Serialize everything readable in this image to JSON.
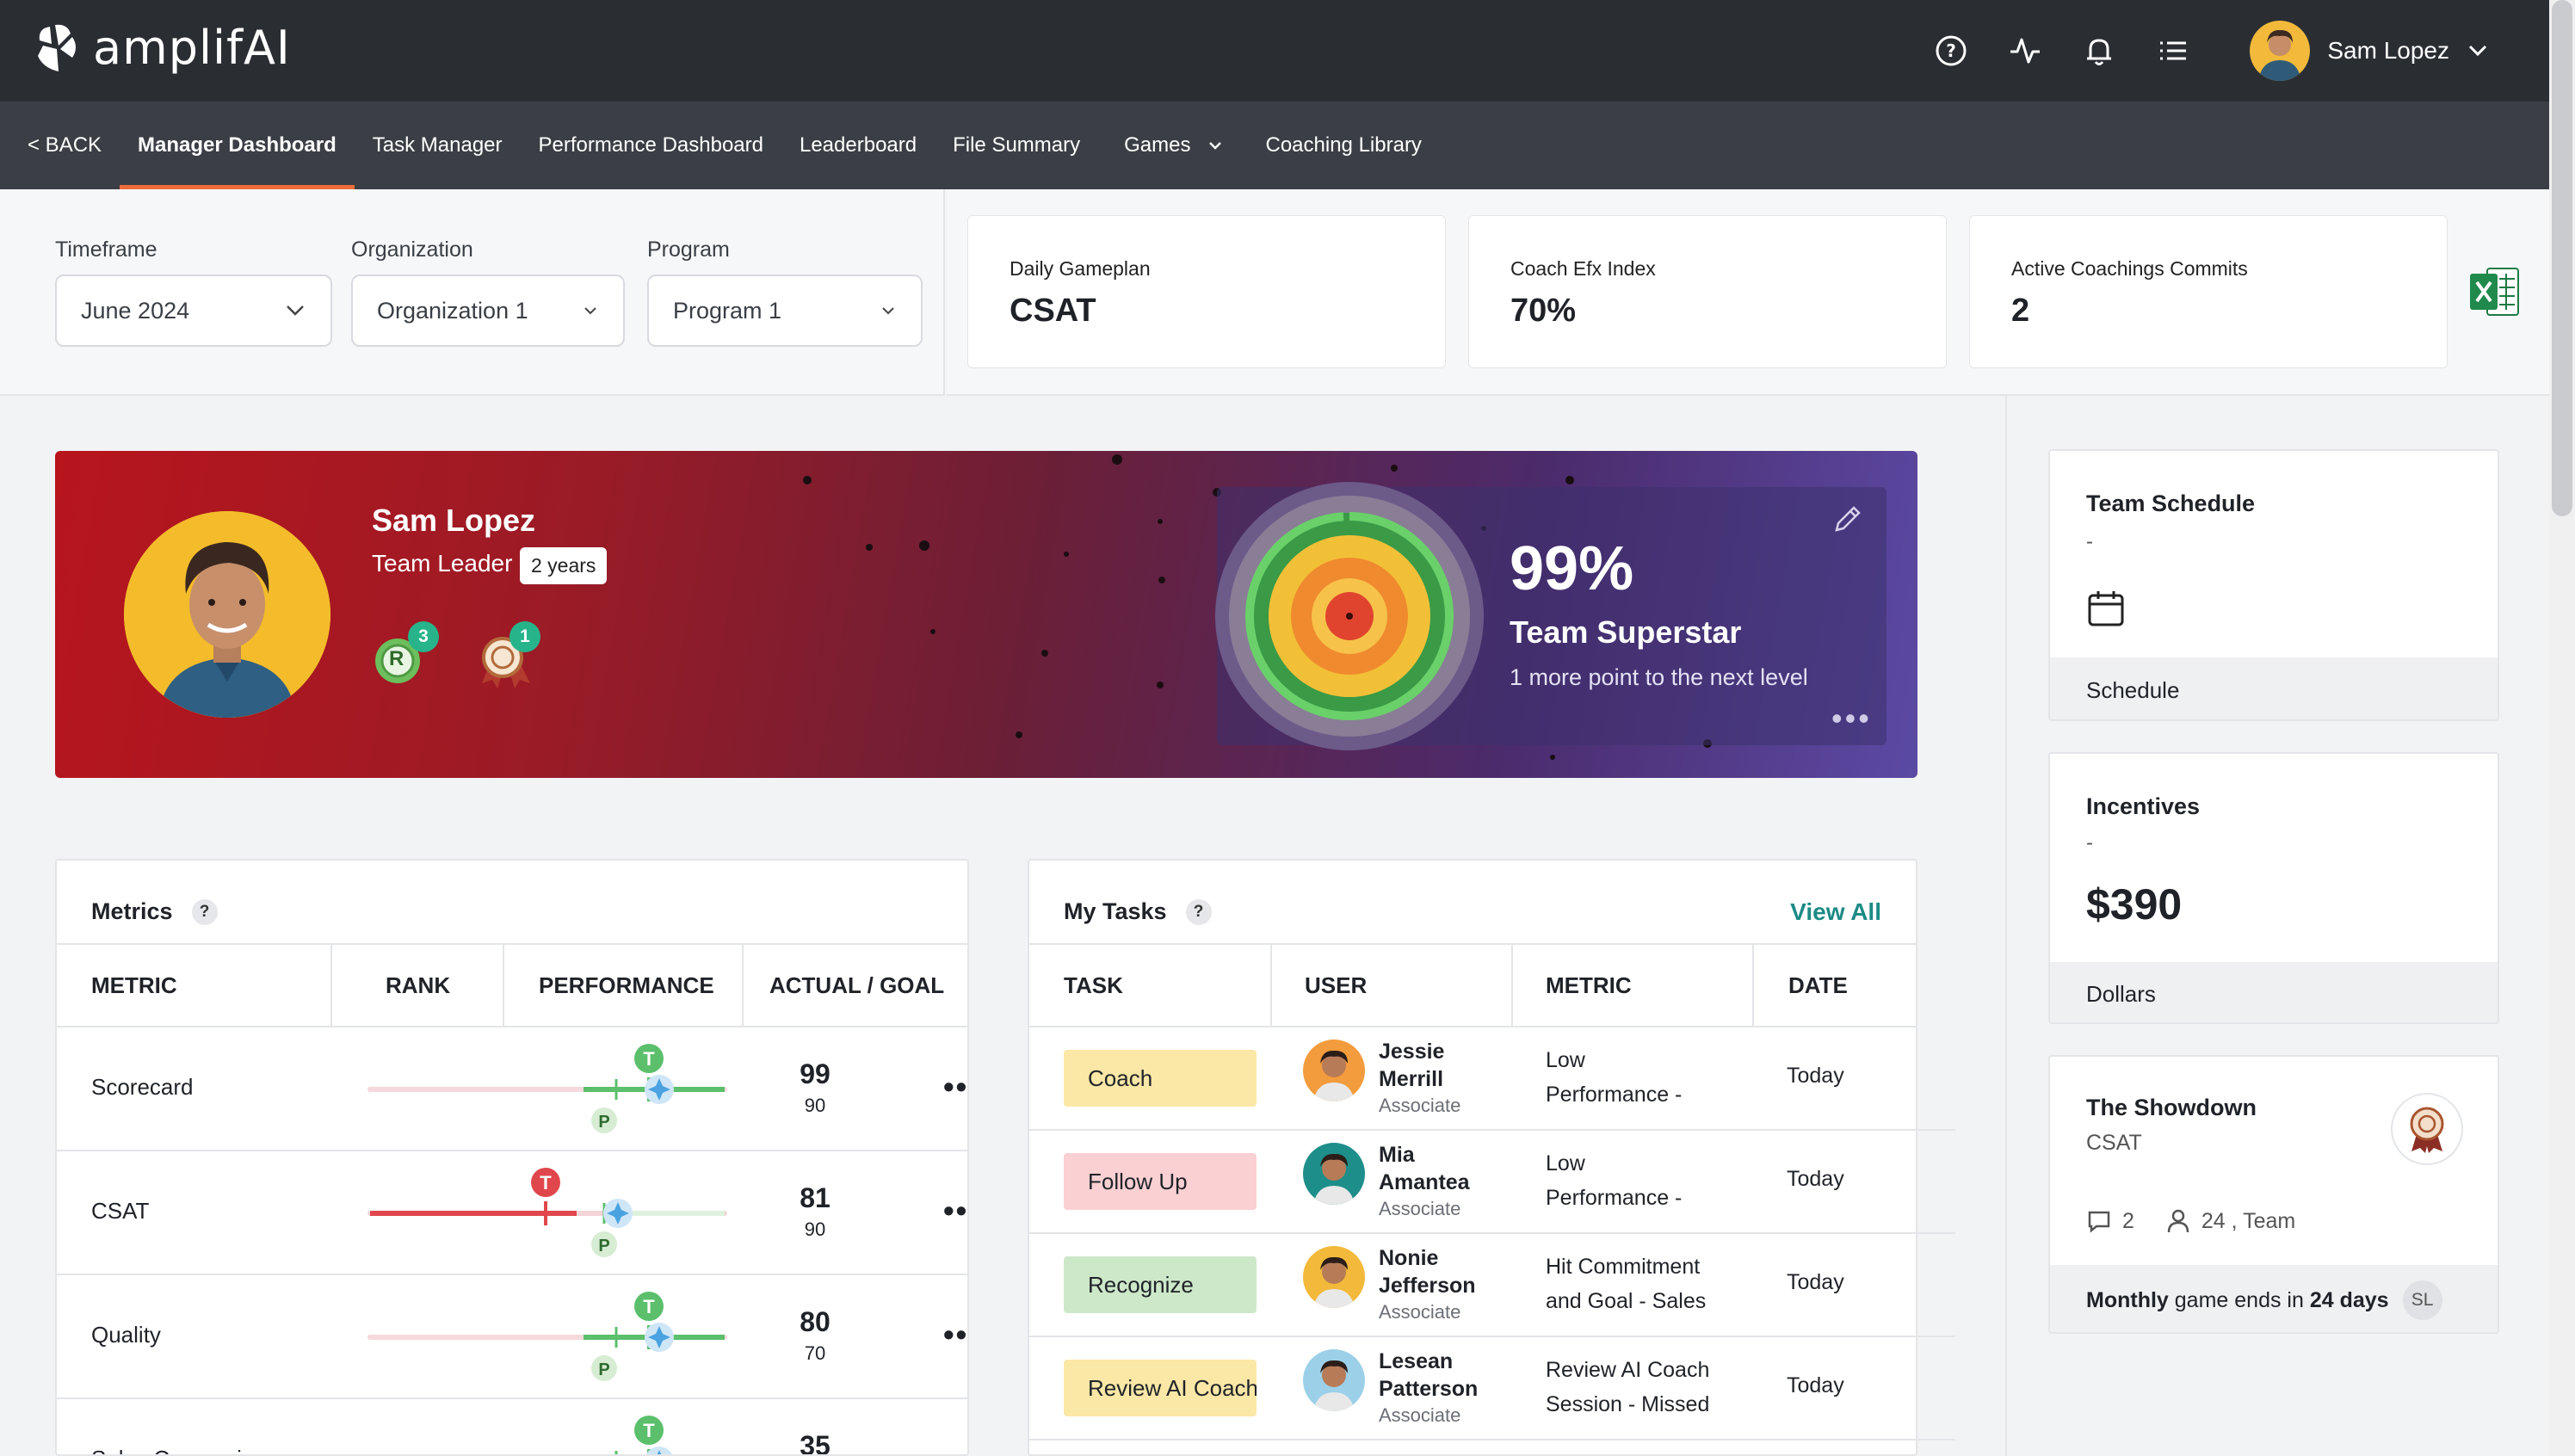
{
  "app": {
    "brand": "amplifAI",
    "user_name": "Sam Lopez"
  },
  "nav": {
    "back": "< BACK",
    "items": [
      "Manager Dashboard",
      "Task Manager",
      "Performance Dashboard",
      "Leaderboard",
      "File Summary",
      "Games",
      "Coaching Library"
    ],
    "active": "Manager Dashboard"
  },
  "filters": {
    "timeframe_label": "Timeframe",
    "timeframe_value": "June 2024",
    "organization_label": "Organization",
    "organization_value": "Organization 1",
    "program_label": "Program",
    "program_value": "Program 1"
  },
  "kpis": [
    {
      "label": "Daily Gameplan",
      "value": "CSAT"
    },
    {
      "label": "Coach Efx Index",
      "value": "70%"
    },
    {
      "label": "Active Coachings Commits",
      "value": "2"
    }
  ],
  "profile": {
    "name": "Sam Lopez",
    "role": "Team Leader",
    "tenure": "2 years",
    "badges": [
      {
        "icon": "recognition-badge-icon",
        "letter": "R",
        "count": "3"
      },
      {
        "icon": "award-ribbon-icon",
        "count": "1"
      }
    ],
    "level_percent": "99%",
    "level_title": "Team Superstar",
    "level_subtitle": "1 more point to the next level",
    "level_progress": 0.99
  },
  "metrics": {
    "title": "Metrics",
    "help": "?",
    "headers": [
      "METRIC",
      "RANK",
      "PERFORMANCE",
      "ACTUAL / GOAL"
    ],
    "target_letter": "T",
    "projection_letter": "P",
    "rows": [
      {
        "name": "Scorecard",
        "actual": "99",
        "goal": "90",
        "status": "good"
      },
      {
        "name": "CSAT",
        "actual": "81",
        "goal": "90",
        "status": "bad"
      },
      {
        "name": "Quality",
        "actual": "80",
        "goal": "70",
        "status": "good"
      },
      {
        "name": "Sales Conversion",
        "actual": "35",
        "goal": "",
        "status": "good"
      }
    ]
  },
  "tasks": {
    "title": "My Tasks",
    "help": "?",
    "view_all": "View All",
    "headers": [
      "TASK",
      "USER",
      "METRIC",
      "DATE"
    ],
    "rows": [
      {
        "task": "Coach",
        "color": "#fbe7a6",
        "user_first": "Jessie",
        "user_last": "Merrill",
        "role": "Associate",
        "metric_l1": "Low",
        "metric_l2": "Performance -",
        "date": "Today",
        "avatar": "#f39c3d"
      },
      {
        "task": "Follow Up",
        "color": "#fbd0d3",
        "user_first": "Mia",
        "user_last": "Amantea",
        "role": "Associate",
        "metric_l1": "Low",
        "metric_l2": "Performance -",
        "date": "Today",
        "avatar": "#1e8e8a"
      },
      {
        "task": "Recognize",
        "color": "#cde8c9",
        "user_first": "Nonie",
        "user_last": "Jefferson",
        "role": "Associate",
        "metric_l1": "Hit Commitment",
        "metric_l2": "and Goal - Sales",
        "date": "Today",
        "avatar": "#f2b93a"
      },
      {
        "task": "Review AI Coaching",
        "color": "#fbe7a6",
        "user_first": "Lesean",
        "user_last": "Patterson",
        "role": "Associate",
        "metric_l1": "Review AI Coach",
        "metric_l2": "Session - Missed",
        "date": "Today",
        "avatar": "#9bd0e8"
      }
    ]
  },
  "side": {
    "schedule_title": "Team Schedule",
    "schedule_dash": "-",
    "schedule_footer": "Schedule",
    "incentives_title": "Incentives",
    "incentives_dash": "-",
    "incentives_value": "$390",
    "incentives_footer": "Dollars",
    "showdown_title": "The Showdown",
    "showdown_metric": "CSAT",
    "showdown_comments": "2",
    "showdown_participants": "24 , Team",
    "showdown_footer_a": "Monthly",
    "showdown_footer_b": " game ends in ",
    "showdown_footer_c": "24 days",
    "showdown_initials": "SL"
  },
  "colors": {
    "topbar": "#2a2e33",
    "navbar": "#3b3f45",
    "accent": "#ef6b3a",
    "link": "#1d8a86",
    "good": "#5bbf6b",
    "bad": "#e0474c",
    "badge": "#27b48a"
  }
}
